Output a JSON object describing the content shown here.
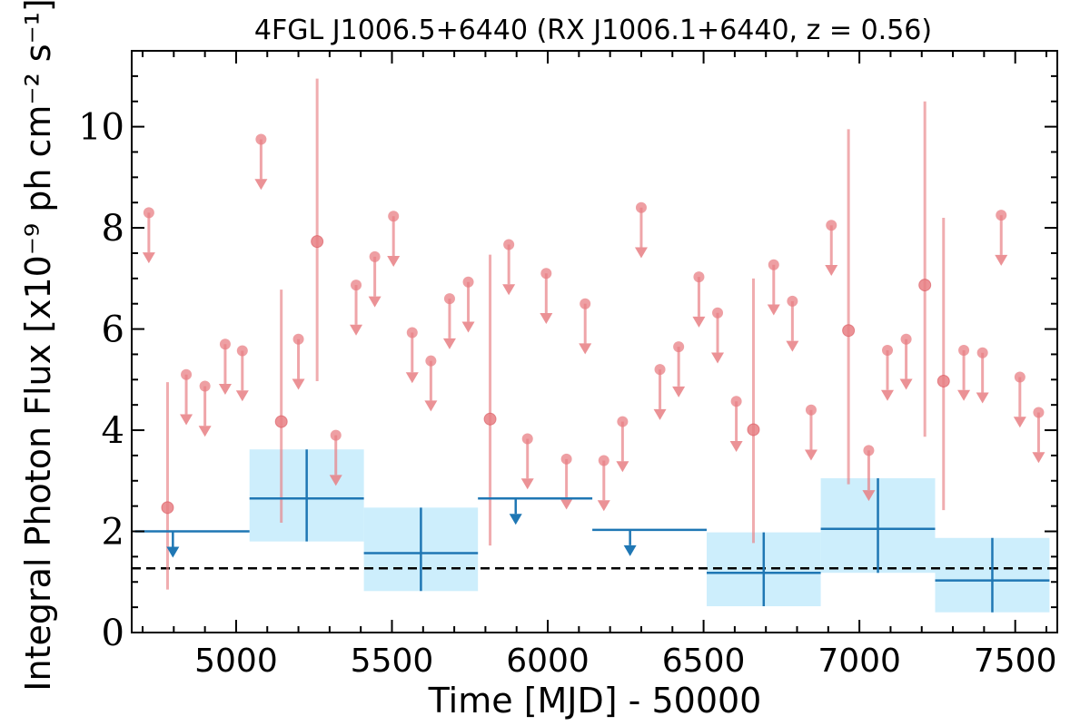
{
  "chart_data": {
    "type": "scatter",
    "title": "4FGL J1006.5+6440 (RX J1006.1+6440, z = 0.56)",
    "xlabel": "Time [MJD] - 50000",
    "ylabel": "Integral Photon Flux [x10⁻⁹ ph cm⁻² s⁻¹]",
    "xlim": [
      4665,
      7635
    ],
    "ylim": [
      0,
      11.5
    ],
    "x_ticks": [
      5000,
      5500,
      6000,
      6500,
      7000,
      7500
    ],
    "x_tick_labels": [
      "5000",
      "5500",
      "6000",
      "6500",
      "7000",
      "7500"
    ],
    "y_ticks": [
      0,
      2,
      4,
      6,
      8,
      10
    ],
    "y_tick_labels": [
      "0",
      "2",
      "4",
      "6",
      "8",
      "10"
    ],
    "mean_flux": 1.27,
    "colors": {
      "short_bins": "#e87f84",
      "long_bins": "#1f77b4",
      "band_fill": "#cdeefc",
      "mean_line": "#000000"
    },
    "short_bins": {
      "detections": [
        {
          "x": 4780,
          "y": 2.47,
          "ylow": 0.85,
          "yhigh": 4.95
        },
        {
          "x": 5145,
          "y": 4.17,
          "ylow": 2.17,
          "yhigh": 6.78
        },
        {
          "x": 5260,
          "y": 7.73,
          "ylow": 4.97,
          "yhigh": 10.95
        },
        {
          "x": 5815,
          "y": 4.22,
          "ylow": 1.72,
          "yhigh": 7.47
        },
        {
          "x": 6660,
          "y": 4.01,
          "ylow": 1.77,
          "yhigh": 7.0
        },
        {
          "x": 6965,
          "y": 5.97,
          "ylow": 2.93,
          "yhigh": 9.95
        },
        {
          "x": 7210,
          "y": 6.87,
          "ylow": 3.87,
          "yhigh": 10.5
        },
        {
          "x": 7270,
          "y": 4.97,
          "ylow": 2.42,
          "yhigh": 8.2
        }
      ],
      "upper_limits": [
        {
          "x": 4720,
          "y": 8.3
        },
        {
          "x": 4840,
          "y": 5.1
        },
        {
          "x": 4900,
          "y": 4.87
        },
        {
          "x": 4965,
          "y": 5.7
        },
        {
          "x": 5020,
          "y": 5.57
        },
        {
          "x": 5080,
          "y": 9.75
        },
        {
          "x": 5200,
          "y": 5.8
        },
        {
          "x": 5320,
          "y": 3.9
        },
        {
          "x": 5385,
          "y": 6.87
        },
        {
          "x": 5445,
          "y": 7.43
        },
        {
          "x": 5505,
          "y": 8.23
        },
        {
          "x": 5565,
          "y": 5.93
        },
        {
          "x": 5625,
          "y": 5.37
        },
        {
          "x": 5685,
          "y": 6.6
        },
        {
          "x": 5745,
          "y": 6.93
        },
        {
          "x": 5875,
          "y": 7.67
        },
        {
          "x": 5935,
          "y": 3.83
        },
        {
          "x": 5995,
          "y": 7.1
        },
        {
          "x": 6060,
          "y": 3.43
        },
        {
          "x": 6120,
          "y": 6.5
        },
        {
          "x": 6180,
          "y": 3.4
        },
        {
          "x": 6240,
          "y": 4.17
        },
        {
          "x": 6300,
          "y": 8.4
        },
        {
          "x": 6360,
          "y": 5.2
        },
        {
          "x": 6420,
          "y": 5.65
        },
        {
          "x": 6485,
          "y": 7.03
        },
        {
          "x": 6545,
          "y": 6.32
        },
        {
          "x": 6605,
          "y": 4.57
        },
        {
          "x": 6725,
          "y": 7.27
        },
        {
          "x": 6785,
          "y": 6.55
        },
        {
          "x": 6845,
          "y": 4.4
        },
        {
          "x": 6910,
          "y": 8.05
        },
        {
          "x": 7030,
          "y": 3.6
        },
        {
          "x": 7090,
          "y": 5.58
        },
        {
          "x": 7150,
          "y": 5.8
        },
        {
          "x": 7335,
          "y": 5.58
        },
        {
          "x": 7395,
          "y": 5.53
        },
        {
          "x": 7455,
          "y": 8.25
        },
        {
          "x": 7515,
          "y": 5.05
        },
        {
          "x": 7575,
          "y": 4.35
        }
      ]
    },
    "long_bins": {
      "detections": [
        {
          "x0": 5043,
          "x1": 5410,
          "y": 2.65,
          "ylow": 1.8,
          "yhigh": 3.62
        },
        {
          "x0": 5410,
          "x1": 5776,
          "y": 1.57,
          "ylow": 0.82,
          "yhigh": 2.47
        },
        {
          "x0": 6510,
          "x1": 6876,
          "y": 1.18,
          "ylow": 0.52,
          "yhigh": 1.98
        },
        {
          "x0": 6876,
          "x1": 7243,
          "y": 2.05,
          "ylow": 1.18,
          "yhigh": 3.05
        },
        {
          "x0": 7243,
          "x1": 7610,
          "y": 1.03,
          "ylow": 0.4,
          "yhigh": 1.87
        }
      ],
      "upper_limits": [
        {
          "x0": 4676,
          "x1": 5043,
          "y": 2.0
        },
        {
          "x0": 5776,
          "x1": 6143,
          "y": 2.65
        },
        {
          "x0": 6143,
          "x1": 6510,
          "y": 2.03
        }
      ]
    }
  }
}
